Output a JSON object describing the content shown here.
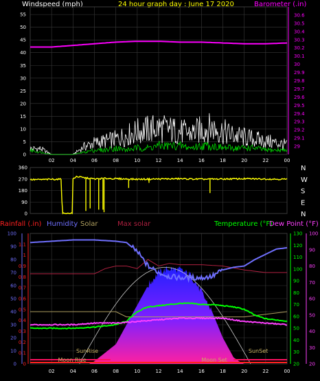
{
  "colors": {
    "background": "#000000",
    "grid": "#3a3a3a",
    "wind_avg": "#00e000",
    "wind_gust": "#ffffff",
    "barometer": "#ff00ff",
    "wind_dir": "#ffff00",
    "rainfall": "#ff2020",
    "humidity": "#7070ff",
    "solar": "#b0a060",
    "max_solar": "#b02040",
    "temperature": "#00ff00",
    "dew_point": "#ff40ff",
    "sunrise_line": "#d0d0d0"
  },
  "header": {
    "windspeed_label": "Windspeed (mph)",
    "title": "24 hour graph day : June 17 2020",
    "barometer_label": "Barometer (.in)"
  },
  "bottom_legend": {
    "rainfall": "Rainfall (.in)",
    "humidity": "Humidity",
    "solar": "Solar",
    "max_solar": "Max solar",
    "temperature": "Temperature (°F)",
    "dew_point": "Dew Point (°F)"
  },
  "annotations": {
    "sunrise": "SunRise",
    "sunset": "SunSet",
    "moonrise": "Moon Rise",
    "moonset": "Moon Set"
  },
  "compass": [
    "N",
    "W",
    "S",
    "E",
    "N"
  ],
  "chart_data": [
    {
      "type": "line",
      "title": "24 hour graph day : June 17 2020",
      "xlabel": "",
      "x_ticks": [
        "02",
        "04",
        "06",
        "08",
        "10",
        "12",
        "14",
        "16",
        "18",
        "20",
        "22",
        "00"
      ],
      "y_left_label": "Windspeed (mph)",
      "y_left_ticks": [
        0,
        5,
        10,
        15,
        20,
        25,
        30,
        35,
        40,
        45,
        50,
        55
      ],
      "y_left_lim": [
        0,
        58
      ],
      "y_right_label": "Barometer (.in)",
      "y_right_ticks": [
        "29",
        "29.1",
        "29.2",
        "29.3",
        "29.4",
        "29.5",
        "29.6",
        "29.7",
        "29.8",
        "29.9",
        "30",
        "30.1",
        "30.2",
        "30.3",
        "30.4",
        "30.5",
        "30.6"
      ],
      "y_right_lim": [
        28.9,
        30.7
      ],
      "grid": true,
      "series": [
        {
          "name": "Barometer",
          "axis": "right",
          "x": [
            0,
            2,
            4,
            6,
            8,
            10,
            12,
            14,
            16,
            18,
            20,
            22,
            24
          ],
          "values": [
            30.21,
            30.21,
            30.23,
            30.25,
            30.27,
            30.28,
            30.28,
            30.27,
            30.27,
            30.26,
            30.25,
            30.25,
            30.26
          ]
        },
        {
          "name": "Windspeed",
          "axis": "left",
          "x": [
            0,
            1,
            2,
            3,
            4,
            5,
            6,
            7,
            8,
            9,
            10,
            11,
            12,
            13,
            14,
            15,
            16,
            17,
            18,
            19,
            20,
            21,
            22,
            23,
            24
          ],
          "values": [
            2,
            1,
            0,
            0,
            0,
            1,
            2,
            2,
            3,
            2,
            3,
            3,
            4,
            4,
            4,
            3,
            4,
            4,
            3,
            3,
            3,
            3,
            2,
            2,
            2
          ]
        },
        {
          "name": "Gust",
          "axis": "left",
          "x": [
            0,
            1,
            2,
            3,
            4,
            5,
            6,
            7,
            8,
            9,
            10,
            11,
            12,
            13,
            14,
            15,
            16,
            17,
            18,
            19,
            20,
            21,
            22,
            23,
            24
          ],
          "values": [
            3,
            3,
            0,
            0,
            0,
            4,
            6,
            7,
            8,
            10,
            12,
            13,
            14,
            13,
            12,
            11,
            13,
            14,
            12,
            10,
            9,
            8,
            7,
            6,
            5
          ]
        }
      ]
    },
    {
      "type": "line",
      "title": "",
      "y_ticks": [
        0,
        90,
        180,
        270,
        360
      ],
      "y_lim": [
        0,
        360
      ],
      "y_right_ticks": [
        "N",
        "W",
        "S",
        "E",
        "N"
      ],
      "grid": true,
      "series": [
        {
          "name": "Wind direction",
          "x": [
            0,
            1,
            2,
            2.9,
            3,
            3.5,
            4,
            4.3,
            5,
            6,
            7,
            8,
            9,
            10,
            12,
            14,
            16,
            18,
            20,
            22,
            24
          ],
          "values": [
            265,
            265,
            268,
            268,
            0,
            0,
            270,
            290,
            280,
            270,
            275,
            272,
            270,
            268,
            270,
            272,
            268,
            270,
            272,
            270,
            268
          ]
        }
      ]
    },
    {
      "type": "area",
      "title": "",
      "x_ticks": [
        "02",
        "04",
        "06",
        "08",
        "10",
        "12",
        "14",
        "16",
        "18",
        "20",
        "22",
        "00"
      ],
      "y_left_ticks": [
        0,
        10,
        20,
        30,
        40,
        50,
        60,
        70,
        80,
        90,
        100
      ],
      "y_left_lim": [
        0,
        100
      ],
      "y_rain_ticks": [
        0,
        0.1,
        0.2,
        0.3,
        0.4,
        0.5,
        0.6,
        0.7,
        0.8,
        0.9,
        1,
        1.1
      ],
      "y_temp_ticks": [
        20,
        30,
        40,
        50,
        60,
        70,
        80,
        90,
        100,
        110,
        120,
        130
      ],
      "y_dew_ticks": [
        20,
        30,
        40,
        50,
        60,
        70,
        80,
        90,
        100
      ],
      "grid": true,
      "series": [
        {
          "name": "Humidity",
          "unit": "%",
          "x": [
            0,
            2,
            4,
            6,
            8,
            9,
            10,
            11,
            12,
            13,
            14,
            15,
            16,
            17,
            18,
            19,
            20,
            21,
            22,
            23,
            24
          ],
          "values": [
            93,
            94,
            95,
            95,
            94,
            93,
            86,
            75,
            70,
            67,
            66,
            66,
            66,
            67,
            72,
            74,
            75,
            80,
            84,
            88,
            89
          ]
        },
        {
          "name": "Solar",
          "unit": "%",
          "x": [
            0,
            5.5,
            6,
            8,
            10,
            11,
            12,
            13,
            14,
            15,
            16,
            17,
            18,
            19,
            19.5,
            20,
            24
          ],
          "values": [
            0,
            0,
            2,
            15,
            45,
            60,
            70,
            73,
            72,
            68,
            55,
            40,
            20,
            5,
            2,
            0,
            0
          ]
        },
        {
          "name": "Max solar",
          "unit": "%",
          "x": [
            0,
            2,
            4,
            6,
            7,
            8,
            9,
            10,
            11,
            12,
            13,
            14,
            16,
            18,
            20,
            22,
            24
          ],
          "values": [
            69,
            69,
            69,
            69,
            73,
            75,
            75,
            73,
            80,
            75,
            77,
            76,
            76,
            75,
            72,
            70,
            70
          ]
        },
        {
          "name": "Temperature",
          "unit": "°F",
          "x": [
            0,
            2,
            4,
            6,
            8,
            9,
            10,
            11,
            12,
            13,
            14,
            15,
            16,
            17,
            18,
            19,
            20,
            21,
            22,
            23,
            24
          ],
          "values": [
            50,
            50,
            50,
            51,
            53,
            56,
            64,
            68,
            69,
            70,
            71,
            71,
            70,
            70,
            69,
            68,
            66,
            61,
            58,
            57,
            56
          ]
        },
        {
          "name": "Dew Point",
          "unit": "°F",
          "x": [
            0,
            2,
            4,
            6,
            8,
            10,
            12,
            14,
            16,
            18,
            20,
            22,
            24
          ],
          "values": [
            44,
            44,
            44,
            45,
            45,
            46,
            47,
            48,
            48,
            48,
            46,
            45,
            44
          ]
        },
        {
          "name": "Rainfall",
          "unit": "in",
          "x": [
            0,
            24
          ],
          "values": [
            0,
            0
          ]
        }
      ]
    }
  ]
}
